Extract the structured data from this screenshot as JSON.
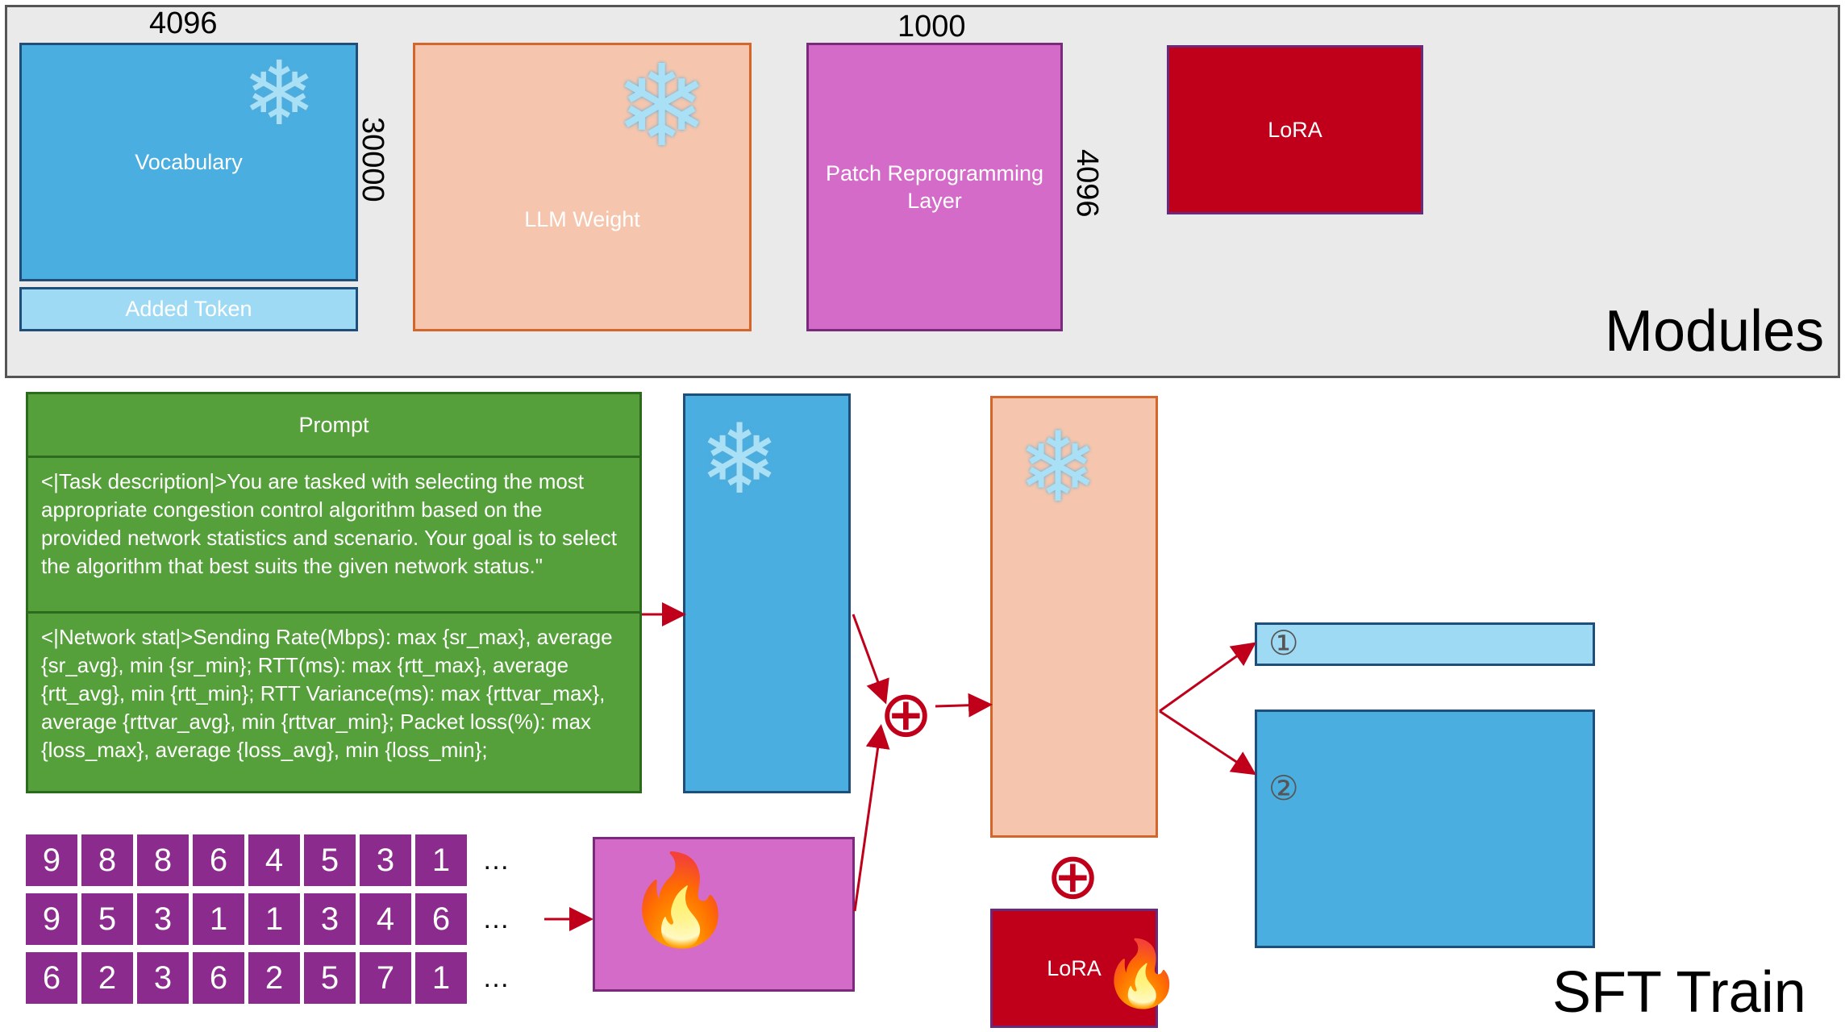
{
  "modules": {
    "title": "Modules",
    "vocabulary": {
      "label": "Vocabulary",
      "width_label": "4096",
      "height_label": "30000"
    },
    "added_token": {
      "label": "Added Token"
    },
    "llm_weight": {
      "label": "LLM Weight"
    },
    "patch_layer": {
      "label": "Patch Reprogramming Layer",
      "width_label": "1000",
      "height_label": "4096"
    },
    "lora": {
      "label": "LoRA"
    }
  },
  "sft": {
    "title": "SFT Train",
    "prompt": {
      "header": "Prompt",
      "task": "<|Task description|>You are tasked with selecting the most appropriate congestion control algorithm based on the provided network statistics and scenario. Your goal is to select the algorithm that best suits the given network status.\"",
      "network": "<|Network stat|>Sending Rate(Mbps): max {sr_max}, average {sr_avg}, min {sr_min}; RTT(ms): max {rtt_max}, average {rtt_avg}, min {rtt_min}; RTT Variance(ms): max {rttvar_max}, average {rttvar_avg}, min {rttvar_min}; Packet loss(%): max {loss_max}, average {loss_avg}, min {loss_min};"
    },
    "number_rows": [
      [
        "9",
        "8",
        "8",
        "6",
        "4",
        "5",
        "3",
        "1"
      ],
      [
        "9",
        "5",
        "3",
        "1",
        "1",
        "3",
        "4",
        "6"
      ],
      [
        "6",
        "2",
        "3",
        "6",
        "2",
        "5",
        "7",
        "1"
      ]
    ],
    "ellipsis": "…",
    "lora_label": "LoRA",
    "output_1": "①",
    "output_2": "②",
    "plus_symbol": "⊕"
  },
  "colors": {
    "vocab_blue": "#4aaee0",
    "added_token_blue": "#9fdaf5",
    "llm_peach": "#f5c6ad",
    "patch_magenta": "#d56bc8",
    "lora_red": "#c0001a",
    "prompt_green": "#55a03a",
    "number_purple": "#8b2b8e",
    "arrow_red": "#c0001a"
  },
  "icons": {
    "frozen": "snowflake-icon",
    "trainable": "fire-icon"
  }
}
